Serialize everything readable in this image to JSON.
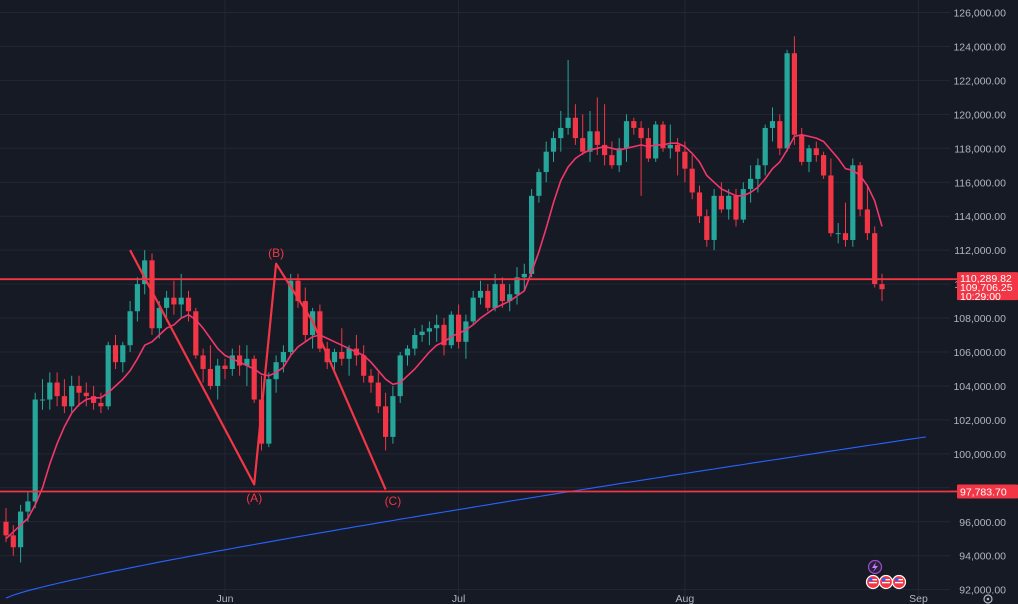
{
  "chart_data": {
    "type": "candlestick",
    "y_axis": {
      "min": 92000,
      "max": 126000,
      "ticks": [
        "126,000.00",
        "124,000.00",
        "122,000.00",
        "120,000.00",
        "118,000.00",
        "116,000.00",
        "114,000.00",
        "112,000.00",
        "110,000.00",
        "108,000.00",
        "106,000.00",
        "104,000.00",
        "102,000.00",
        "100,000.00",
        "98,000.00",
        "96,000.00",
        "94,000.00",
        "92,000.00"
      ],
      "tick_values": [
        126000,
        124000,
        122000,
        120000,
        118000,
        116000,
        114000,
        112000,
        110000,
        108000,
        106000,
        104000,
        102000,
        100000,
        98000,
        96000,
        94000,
        92000
      ]
    },
    "x_axis": {
      "labels": [
        "Jun",
        "Jul",
        "Aug",
        "Sep"
      ],
      "label_bar_index": [
        30,
        62,
        93,
        125
      ]
    },
    "grid": true,
    "colors": {
      "up": "#26a69a",
      "down": "#f23645",
      "ma_short": "#f2366b",
      "ma_long": "#2962ff",
      "background": "#161a25"
    },
    "candles": [
      [
        96.0,
        96.8,
        94.8,
        95.2
      ],
      [
        95.2,
        95.8,
        94.0,
        94.5
      ],
      [
        94.5,
        97.0,
        93.6,
        96.6
      ],
      [
        96.6,
        97.8,
        96.0,
        97.2
      ],
      [
        97.2,
        103.6,
        96.8,
        103.2
      ],
      [
        103.2,
        104.4,
        102.6,
        103.2
      ],
      [
        103.2,
        104.8,
        102.6,
        104.2
      ],
      [
        104.2,
        104.8,
        102.8,
        103.4
      ],
      [
        103.4,
        104.4,
        102.4,
        102.8
      ],
      [
        102.8,
        104.6,
        102.4,
        104.0
      ],
      [
        104.0,
        104.6,
        102.8,
        103.6
      ],
      [
        103.6,
        104.2,
        102.8,
        103.4
      ],
      [
        103.4,
        104.0,
        102.6,
        103.0
      ],
      [
        103.0,
        103.6,
        102.4,
        102.8
      ],
      [
        102.8,
        106.6,
        102.6,
        106.4
      ],
      [
        106.4,
        107.0,
        105.0,
        105.4
      ],
      [
        105.4,
        106.6,
        104.8,
        106.4
      ],
      [
        106.4,
        109.0,
        106.0,
        108.4
      ],
      [
        108.4,
        110.4,
        107.8,
        110.0
      ],
      [
        110.0,
        112.0,
        109.4,
        111.4
      ],
      [
        111.4,
        111.8,
        107.0,
        107.4
      ],
      [
        107.4,
        109.0,
        106.8,
        108.6
      ],
      [
        108.6,
        109.6,
        107.8,
        109.2
      ],
      [
        109.2,
        110.2,
        108.2,
        108.8
      ],
      [
        108.8,
        110.6,
        108.0,
        109.2
      ],
      [
        109.2,
        109.6,
        107.8,
        108.4
      ],
      [
        108.4,
        108.6,
        105.6,
        105.8
      ],
      [
        105.8,
        106.2,
        104.2,
        105.0
      ],
      [
        105.0,
        106.4,
        103.8,
        104.0
      ],
      [
        104.0,
        105.6,
        103.2,
        105.2
      ],
      [
        105.2,
        105.6,
        104.4,
        105.0
      ],
      [
        105.0,
        106.2,
        104.6,
        105.8
      ],
      [
        105.8,
        106.4,
        104.6,
        105.2
      ],
      [
        105.2,
        106.4,
        104.0,
        105.6
      ],
      [
        105.6,
        105.8,
        103.0,
        103.2
      ],
      [
        103.2,
        104.6,
        100.2,
        100.6
      ],
      [
        100.6,
        104.8,
        100.4,
        104.4
      ],
      [
        104.4,
        105.8,
        103.6,
        105.4
      ],
      [
        105.4,
        106.4,
        104.8,
        106.0
      ],
      [
        106.0,
        110.6,
        105.8,
        110.2
      ],
      [
        110.2,
        110.6,
        108.6,
        109.0
      ],
      [
        109.0,
        109.8,
        106.6,
        107.0
      ],
      [
        107.0,
        108.6,
        106.2,
        108.4
      ],
      [
        108.4,
        108.8,
        106.0,
        106.2
      ],
      [
        106.2,
        106.6,
        105.0,
        105.4
      ],
      [
        105.4,
        106.2,
        104.8,
        106.0
      ],
      [
        106.0,
        107.4,
        105.2,
        105.6
      ],
      [
        105.6,
        106.4,
        104.6,
        106.2
      ],
      [
        106.2,
        107.0,
        105.2,
        105.8
      ],
      [
        105.8,
        106.4,
        104.2,
        104.6
      ],
      [
        104.6,
        105.0,
        103.6,
        104.2
      ],
      [
        104.2,
        104.8,
        102.4,
        102.8
      ],
      [
        102.8,
        103.6,
        100.2,
        101.0
      ],
      [
        101.0,
        104.0,
        100.6,
        103.4
      ],
      [
        103.4,
        106.0,
        103.0,
        105.8
      ],
      [
        105.8,
        106.4,
        105.2,
        106.2
      ],
      [
        106.2,
        107.4,
        105.8,
        107.0
      ],
      [
        107.0,
        107.6,
        106.6,
        107.2
      ],
      [
        107.2,
        107.8,
        106.4,
        107.4
      ],
      [
        107.4,
        108.2,
        106.6,
        107.6
      ],
      [
        107.6,
        108.0,
        105.8,
        106.4
      ],
      [
        106.4,
        108.4,
        106.2,
        108.2
      ],
      [
        108.2,
        108.8,
        106.2,
        106.6
      ],
      [
        106.6,
        108.2,
        105.6,
        107.8
      ],
      [
        107.8,
        109.6,
        107.6,
        109.2
      ],
      [
        109.2,
        110.2,
        108.8,
        109.6
      ],
      [
        109.6,
        110.0,
        108.4,
        108.6
      ],
      [
        108.6,
        110.6,
        108.4,
        110.0
      ],
      [
        110.0,
        110.4,
        108.6,
        109.0
      ],
      [
        109.0,
        110.0,
        108.4,
        109.4
      ],
      [
        109.4,
        111.0,
        108.8,
        110.4
      ],
      [
        110.4,
        111.2,
        109.6,
        110.6
      ],
      [
        110.6,
        115.6,
        110.4,
        115.2
      ],
      [
        115.2,
        116.8,
        114.8,
        116.6
      ],
      [
        116.6,
        118.4,
        116.0,
        117.8
      ],
      [
        117.8,
        119.0,
        117.2,
        118.6
      ],
      [
        118.6,
        120.2,
        117.8,
        119.2
      ],
      [
        119.2,
        123.2,
        118.8,
        119.8
      ],
      [
        119.8,
        120.6,
        118.2,
        118.6
      ],
      [
        118.6,
        120.0,
        117.6,
        117.8
      ],
      [
        117.8,
        120.2,
        117.2,
        119.0
      ],
      [
        119.0,
        121.0,
        117.6,
        118.2
      ],
      [
        118.2,
        120.6,
        117.0,
        117.6
      ],
      [
        117.6,
        118.4,
        116.8,
        117.0
      ],
      [
        117.0,
        118.6,
        116.6,
        118.0
      ],
      [
        118.0,
        120.0,
        117.2,
        119.6
      ],
      [
        119.6,
        119.8,
        118.8,
        119.2
      ],
      [
        119.2,
        119.6,
        115.2,
        118.6
      ],
      [
        118.6,
        119.2,
        117.2,
        117.4
      ],
      [
        117.4,
        119.6,
        117.2,
        119.4
      ],
      [
        119.4,
        119.6,
        117.8,
        118.0
      ],
      [
        118.0,
        119.4,
        117.4,
        118.2
      ],
      [
        118.2,
        118.6,
        116.4,
        117.8
      ],
      [
        117.8,
        118.4,
        116.0,
        116.8
      ],
      [
        116.8,
        117.6,
        115.0,
        115.4
      ],
      [
        115.4,
        115.8,
        113.6,
        114.0
      ],
      [
        114.0,
        114.4,
        112.2,
        112.6
      ],
      [
        112.6,
        115.6,
        112.0,
        115.2
      ],
      [
        115.2,
        116.0,
        114.2,
        114.4
      ],
      [
        114.4,
        115.6,
        113.8,
        115.2
      ],
      [
        115.2,
        115.6,
        113.4,
        113.8
      ],
      [
        113.8,
        116.0,
        113.6,
        115.6
      ],
      [
        115.6,
        117.0,
        114.8,
        116.2
      ],
      [
        116.2,
        117.4,
        115.4,
        117.0
      ],
      [
        117.0,
        119.4,
        116.4,
        119.2
      ],
      [
        119.2,
        120.4,
        118.4,
        119.6
      ],
      [
        119.6,
        120.0,
        117.6,
        118.0
      ],
      [
        118.0,
        123.8,
        117.8,
        123.6
      ],
      [
        123.6,
        124.6,
        118.2,
        118.8
      ],
      [
        118.8,
        119.2,
        117.0,
        117.2
      ],
      [
        117.2,
        118.2,
        116.6,
        118.0
      ],
      [
        118.0,
        118.4,
        117.2,
        117.6
      ],
      [
        117.6,
        117.8,
        116.2,
        116.4
      ],
      [
        116.4,
        117.4,
        112.8,
        113.0
      ],
      [
        113.0,
        113.6,
        112.4,
        113.0
      ],
      [
        113.0,
        114.8,
        112.2,
        112.6
      ],
      [
        112.6,
        117.4,
        112.2,
        117.0
      ],
      [
        117.0,
        117.2,
        114.0,
        114.4
      ],
      [
        114.4,
        115.8,
        112.6,
        113.0
      ],
      [
        113.0,
        113.4,
        109.8,
        110.0
      ],
      [
        110.0,
        110.6,
        109.0,
        109.7
      ]
    ],
    "moving_average_short": [
      95.0,
      95.4,
      95.8,
      96.2,
      97.0,
      98.0,
      99.4,
      100.6,
      101.6,
      102.4,
      102.9,
      103.2,
      103.3,
      103.3,
      103.6,
      104.0,
      104.4,
      104.9,
      105.6,
      106.4,
      106.6,
      107.0,
      107.4,
      107.6,
      108.0,
      108.2,
      107.9,
      107.4,
      106.8,
      106.2,
      105.8,
      105.6,
      105.4,
      105.2,
      105.0,
      104.7,
      104.6,
      104.8,
      105.1,
      105.8,
      106.3,
      106.6,
      106.9,
      107.0,
      106.8,
      106.6,
      106.4,
      106.2,
      106.0,
      105.8,
      105.4,
      104.9,
      104.4,
      104.1,
      104.2,
      104.6,
      105.0,
      105.5,
      106.0,
      106.4,
      106.6,
      106.9,
      107.1,
      107.3,
      107.6,
      108.0,
      108.3,
      108.6,
      108.8,
      109.0,
      109.3,
      109.6,
      110.7,
      111.9,
      113.3,
      114.8,
      116.1,
      116.9,
      117.4,
      117.7,
      117.9,
      118.0,
      118.1,
      118.0,
      117.9,
      118.0,
      118.1,
      118.2,
      118.1,
      118.2,
      118.2,
      118.3,
      118.3,
      118.1,
      117.7,
      117.2,
      116.4,
      116.0,
      115.6,
      115.4,
      115.2,
      115.2,
      115.4,
      115.7,
      116.2,
      116.8,
      117.2,
      117.9,
      118.7,
      118.8,
      118.7,
      118.6,
      118.4,
      117.9,
      117.4,
      116.8,
      116.7,
      116.4,
      115.8,
      114.9,
      113.4
    ],
    "moving_average_long": {
      "start_bar": 0,
      "end_bar": 126,
      "start_value": 91.5,
      "end_value": 101.0
    },
    "horizontal_levels": [
      {
        "value": 110289.82,
        "label": "110,289.82"
      },
      {
        "value": 97783.7,
        "label": "97,783.70"
      }
    ],
    "last_price": {
      "value": "109,706.25",
      "countdown": "10:29:00"
    },
    "wave_labels": [
      {
        "text": "(A)",
        "bar": 34,
        "value": 99500
      },
      {
        "text": "(B)",
        "bar": 37,
        "value": 111600
      },
      {
        "text": "(C)",
        "bar": 53,
        "value": 99300
      }
    ],
    "wave_path": [
      [
        17,
        112000
      ],
      [
        34,
        98200
      ],
      [
        37,
        111200
      ],
      [
        42,
        107800
      ],
      [
        52,
        97900
      ]
    ]
  }
}
